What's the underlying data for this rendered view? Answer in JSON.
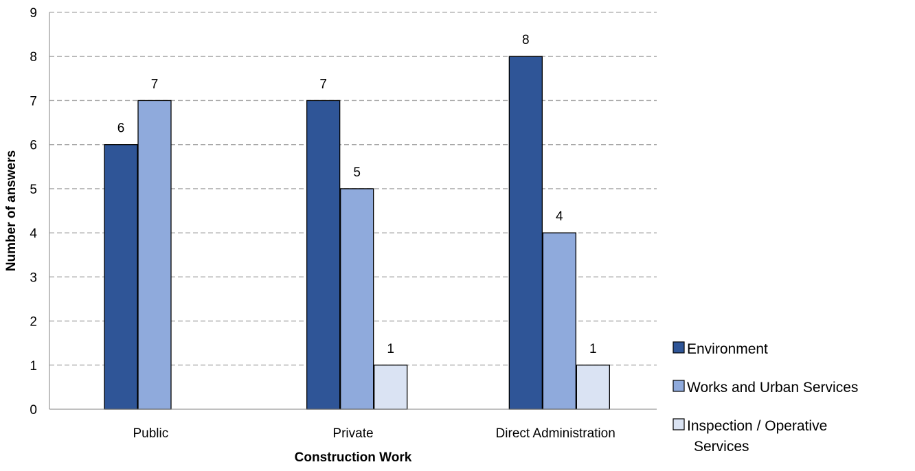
{
  "chart_data": {
    "type": "bar",
    "categories": [
      "Public",
      "Private",
      "Direct Administration"
    ],
    "series": [
      {
        "name": "Environment",
        "values": [
          6,
          7,
          8
        ],
        "color": "#2F5597"
      },
      {
        "name": "Works and Urban Services",
        "values": [
          7,
          5,
          4
        ],
        "color": "#8FAADC"
      },
      {
        "name": "Inspection / Operative Services",
        "legend_lines": [
          "Inspection / Operative",
          "Services"
        ],
        "values": [
          null,
          1,
          1
        ],
        "color": "#DAE3F3"
      }
    ],
    "xlabel": "Construction Work",
    "ylabel": "Number of answers",
    "ylim": [
      0,
      9
    ],
    "yticks": [
      0,
      1,
      2,
      3,
      4,
      5,
      6,
      7,
      8,
      9
    ],
    "grid": true,
    "legend_position": "right-bottom"
  }
}
